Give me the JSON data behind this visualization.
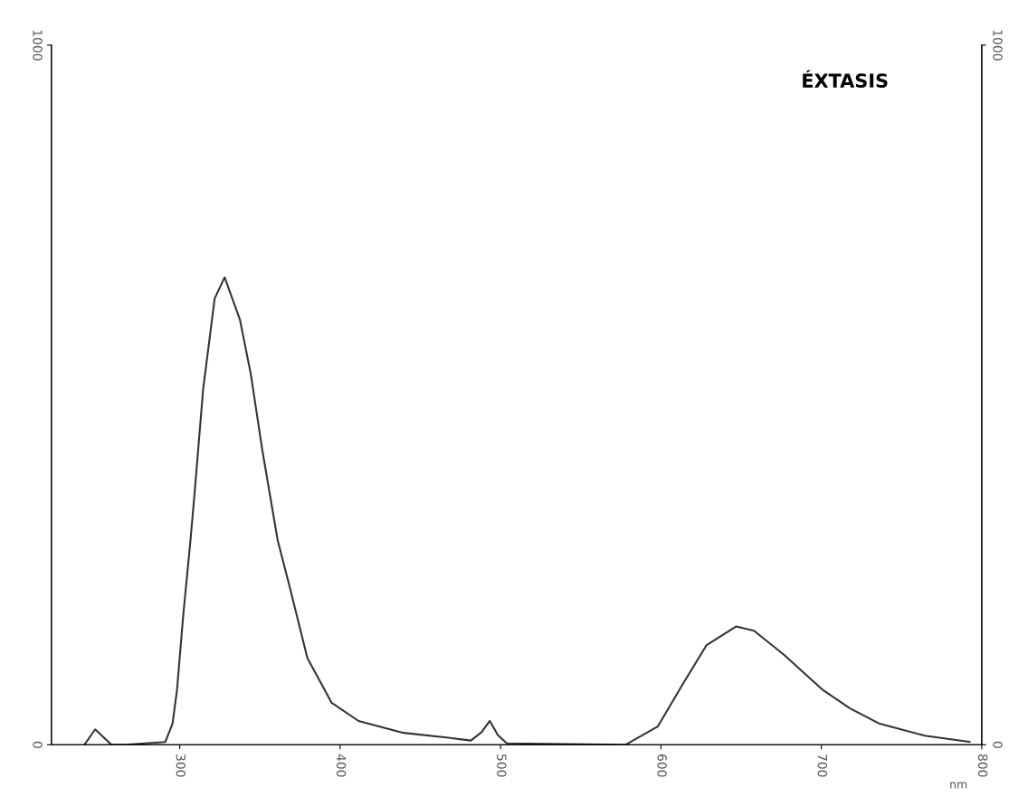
{
  "chart_data": {
    "type": "line",
    "title": "ÉXTASIS",
    "xlabel": "nm",
    "xlim": [
      220,
      800
    ],
    "xticks": [
      300,
      400,
      500,
      600,
      700,
      800
    ],
    "ylim": [
      0,
      1000
    ],
    "yticks": [
      0,
      1000
    ],
    "y2lim": [
      0,
      1000
    ],
    "y2ticks": [
      0,
      1000
    ],
    "series": [
      {
        "color": "#333333",
        "x": [
          240.6,
          247.3,
          257.4,
          265.8,
          291,
          295.5,
          298.3,
          302.2,
          306.7,
          309.5,
          314.6,
          321.8,
          328,
          337.5,
          344.3,
          351.5,
          361.1,
          368.3,
          379.6,
          394.7,
          411.5,
          439.5,
          467.5,
          481.5,
          488.2,
          493.3,
          498.3,
          503.9,
          577.9,
          598,
          613.2,
          628.3,
          646.8,
          658,
          676.5,
          701.1,
          717.9,
          736.4,
          764.4,
          792.4
        ],
        "values": [
          0,
          22,
          0,
          0,
          4,
          30,
          78,
          185,
          292,
          366,
          508,
          638,
          668,
          608,
          530,
          421,
          292,
          228,
          124,
          60,
          34,
          17,
          10,
          6,
          18,
          34,
          14,
          2,
          0,
          26,
          85,
          142,
          169,
          163,
          129,
          78,
          52,
          30,
          13,
          4
        ]
      }
    ]
  }
}
